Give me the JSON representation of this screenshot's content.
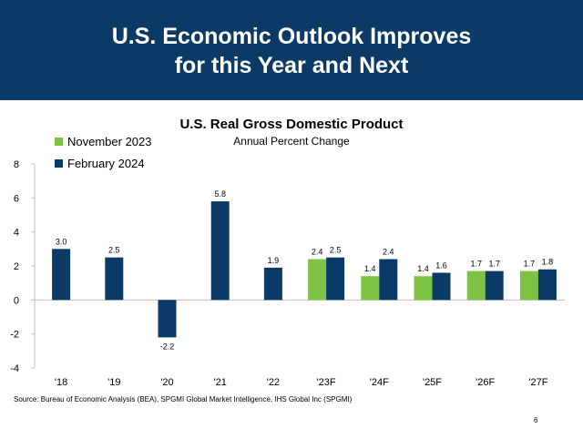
{
  "slide": {
    "title_line1": "U.S. Economic Outlook Improves",
    "title_line2": "for this Year and Next",
    "source": "Source: Bureau of Economic Analysis (BEA), SPGMI Global Market Intelligence, IHS Global Inc (SPGMI)",
    "page_number": "6"
  },
  "colors": {
    "banner": "#0b3a66",
    "november_2023": "#7dc242",
    "february_2024": "#0b3a66"
  },
  "chart_data": {
    "type": "bar",
    "title": "U.S. Real Gross Domestic Product",
    "subtitle": "Annual Percent Change",
    "categories": [
      "'18",
      "'19",
      "'20",
      "'21",
      "'22",
      "'23F",
      "'24F",
      "'25F",
      "'26F",
      "'27F"
    ],
    "series": [
      {
        "name": "November 2023",
        "values": [
          null,
          null,
          null,
          null,
          null,
          2.4,
          1.4,
          1.4,
          1.7,
          1.7
        ]
      },
      {
        "name": "February 2024",
        "values": [
          3.0,
          2.5,
          -2.2,
          5.8,
          1.9,
          2.5,
          2.4,
          1.6,
          1.7,
          1.8
        ]
      }
    ],
    "data_labels": [
      [
        "",
        "",
        "",
        "",
        "",
        "2.4",
        "1.4",
        "1.4",
        "1.7",
        "1.7"
      ],
      [
        "3.0",
        "2.5",
        "-2.2",
        "5.8",
        "1.9",
        "2.5",
        "2.4",
        "1.6",
        "1.7",
        "1.8"
      ]
    ],
    "yticks": [
      "8",
      "6",
      "4",
      "2",
      "0",
      "-2",
      "-4"
    ],
    "ylim": [
      -4,
      8
    ],
    "legend_position": "top-left",
    "grid": false
  }
}
